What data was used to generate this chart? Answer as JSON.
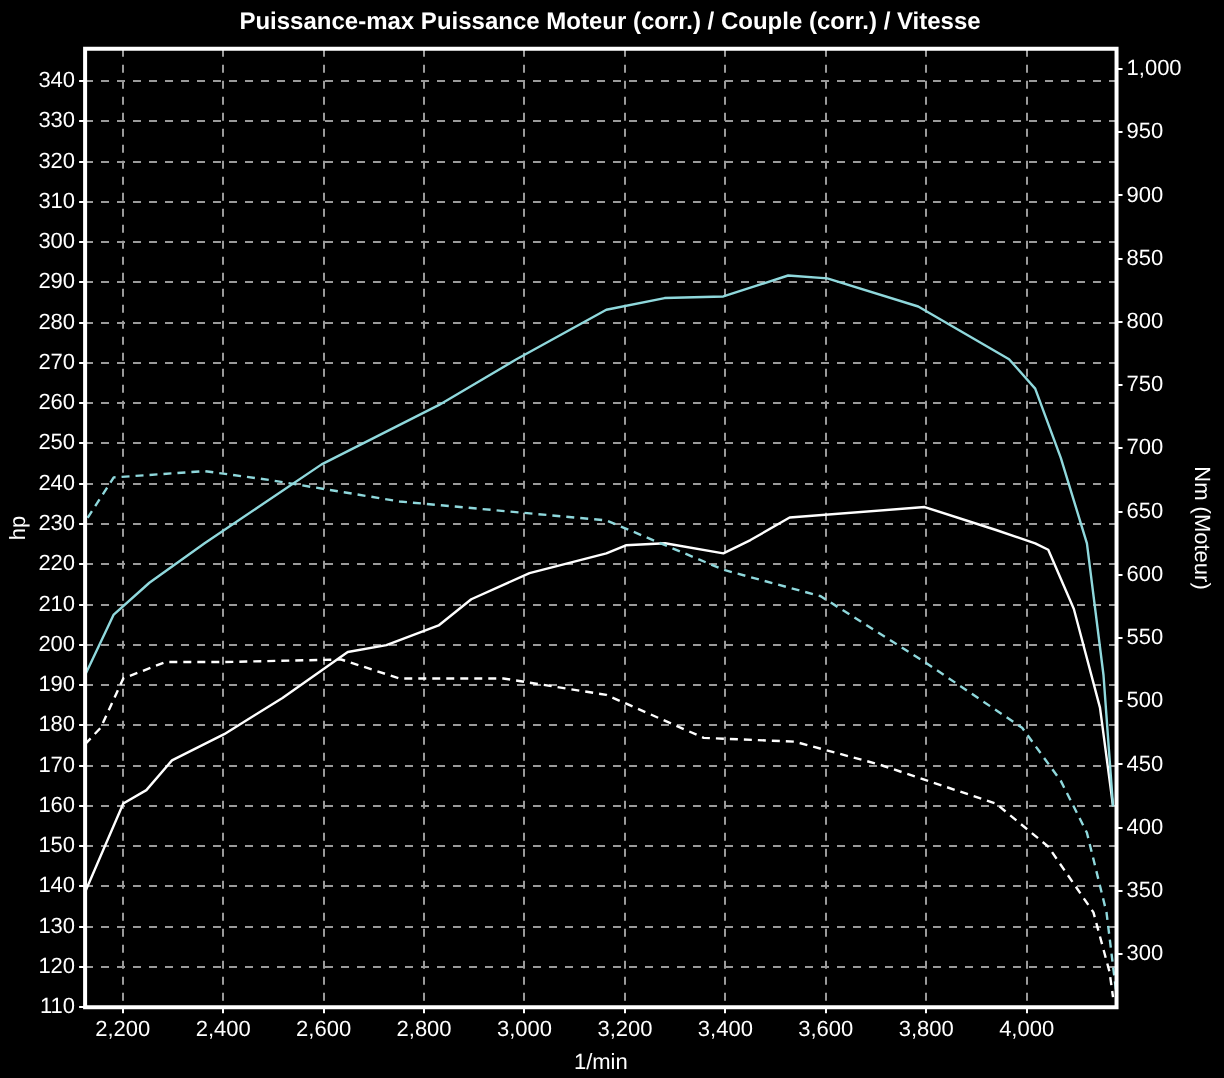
{
  "chart_data": {
    "type": "line",
    "title": "Puissance-max Puissance Moteur (corr.) / Couple (corr.) / Vitesse",
    "xlabel": "1/min",
    "ylabel": "hp",
    "y2label": "Nm (Moteur)",
    "xlim": [
      2125,
      4179
    ],
    "xticks": [
      {
        "value": 2200,
        "label": "2,200"
      },
      {
        "value": 2400,
        "label": "2,400"
      },
      {
        "value": 2600,
        "label": "2,600"
      },
      {
        "value": 2800,
        "label": "2,800"
      },
      {
        "value": 3000,
        "label": "3,000"
      },
      {
        "value": 3200,
        "label": "3,200"
      },
      {
        "value": 3400,
        "label": "3,400"
      },
      {
        "value": 3600,
        "label": "3,600"
      },
      {
        "value": 3800,
        "label": "3,800"
      },
      {
        "value": 4000,
        "label": "4,000"
      }
    ],
    "ylim": [
      110,
      348
    ],
    "yticks": [
      110,
      120,
      130,
      140,
      150,
      160,
      170,
      180,
      190,
      200,
      210,
      220,
      230,
      240,
      250,
      260,
      270,
      280,
      290,
      300,
      310,
      320,
      330,
      340
    ],
    "y2lim": [
      258,
      1016
    ],
    "y2ticks": [
      300,
      350,
      400,
      450,
      500,
      550,
      600,
      650,
      700,
      750,
      800,
      850,
      900,
      950,
      {
        "value": 1000,
        "label": "1,000"
      }
    ],
    "grid": true,
    "legend": false,
    "marker": "none",
    "series": [
      {
        "color": "#8fd8dc",
        "line_style": "solid",
        "x": [
          2125,
          2182,
          2253,
          2363,
          2596,
          2829,
          2984,
          3163,
          3279,
          3396,
          3525,
          3603,
          3784,
          3965,
          4017,
          4068,
          4120,
          4153,
          4172
        ],
        "values": [
          192.5,
          207.5,
          215.4,
          225.2,
          244.8,
          259.5,
          270.9,
          283.2,
          286.1,
          286.5,
          291.7,
          291,
          284,
          270.9,
          263.6,
          246.4,
          225.2,
          192.5,
          159.9
        ]
      },
      {
        "color": "#8fd8dc",
        "line_style": "dashed",
        "axis": "y2",
        "x": [
          2130,
          2182,
          2363,
          2492,
          2751,
          3163,
          3396,
          3590,
          3797,
          3991,
          4068,
          4120,
          4159,
          4178
        ],
        "values": [
          645,
          677,
          682,
          675,
          658,
          643,
          604,
          583,
          531,
          479,
          437,
          396,
          333,
          271
        ]
      },
      {
        "color": "#ffffff",
        "line_style": "solid",
        "x": [
          2125,
          2201,
          2247,
          2298,
          2402,
          2518,
          2648,
          2725,
          2829,
          2894,
          3010,
          3163,
          3202,
          3280,
          3396,
          3450,
          3528,
          3797,
          3939,
          4017,
          4043,
          4094,
          4146,
          4172
        ],
        "values": [
          138.6,
          160.6,
          163.9,
          171.3,
          177.8,
          186.8,
          198.2,
          199.9,
          204.8,
          211.3,
          217.8,
          222.7,
          224.7,
          225.2,
          222.7,
          226,
          231.6,
          234.2,
          228.5,
          225.2,
          223.6,
          208.9,
          184.4,
          159.9
        ]
      },
      {
        "color": "#ffffff",
        "line_style": "dashed",
        "axis": "y2",
        "x": [
          2125,
          2156,
          2201,
          2285,
          2402,
          2635,
          2751,
          2958,
          3163,
          3357,
          3538,
          3706,
          3939,
          4043,
          4133,
          4165,
          4172
        ],
        "values": [
          466,
          479,
          518,
          531,
          531,
          533,
          518,
          518,
          505,
          471,
          468,
          450,
          419,
          385,
          333,
          286,
          266
        ]
      }
    ]
  }
}
